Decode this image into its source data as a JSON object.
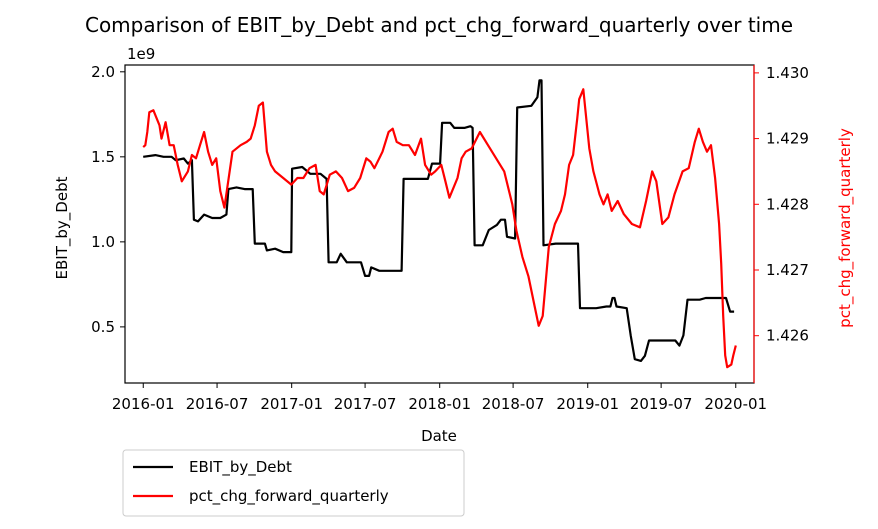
{
  "chart_data": {
    "type": "line",
    "title": "Comparison of EBIT_by_Debt and pct_chg_forward_quarterly over time",
    "xlabel": "Date",
    "x_ticks": [
      "2016-01",
      "2016-07",
      "2017-01",
      "2017-07",
      "2018-01",
      "2018-07",
      "2019-01",
      "2019-07",
      "2020-01"
    ],
    "x_range": [
      "2015-11-17",
      "2020-02-15"
    ],
    "left_axis": {
      "label": "EBIT_by_Debt",
      "offset_text": "1e9",
      "ticks": [
        "0.5",
        "1.0",
        "1.5",
        "2.0"
      ],
      "range": [
        0.17,
        2.04
      ],
      "unit_multiplier": 1000000000,
      "color": "#000000"
    },
    "right_axis": {
      "label": "pct_chg_forward_quarterly",
      "ticks": [
        "1.426",
        "1.427",
        "1.428",
        "1.429",
        "1.430"
      ],
      "range": [
        1.42528,
        1.43012
      ],
      "color": "#ff0000"
    },
    "legend": {
      "placement": "below-left"
    },
    "grid": false,
    "series": [
      {
        "name": "EBIT_by_Debt",
        "axis": "left",
        "color": "#000000",
        "points": [
          [
            "2016-01-01",
            1.5
          ],
          [
            "2016-01-31",
            1.51
          ],
          [
            "2016-02-20",
            1.5
          ],
          [
            "2016-03-11",
            1.5
          ],
          [
            "2016-03-21",
            1.48
          ],
          [
            "2016-04-10",
            1.49
          ],
          [
            "2016-04-20",
            1.46
          ],
          [
            "2016-04-30",
            1.48
          ],
          [
            "2016-05-05",
            1.13
          ],
          [
            "2016-05-15",
            1.12
          ],
          [
            "2016-05-30",
            1.16
          ],
          [
            "2016-06-19",
            1.14
          ],
          [
            "2016-07-09",
            1.14
          ],
          [
            "2016-07-24",
            1.16
          ],
          [
            "2016-07-29",
            1.31
          ],
          [
            "2016-08-18",
            1.32
          ],
          [
            "2016-09-07",
            1.31
          ],
          [
            "2016-09-27",
            1.31
          ],
          [
            "2016-10-02",
            0.99
          ],
          [
            "2016-10-27",
            0.99
          ],
          [
            "2016-11-01",
            0.95
          ],
          [
            "2016-11-21",
            0.96
          ],
          [
            "2016-12-11",
            0.94
          ],
          [
            "2016-12-31",
            0.94
          ],
          [
            "2017-01-02",
            1.43
          ],
          [
            "2017-01-27",
            1.44
          ],
          [
            "2017-02-16",
            1.4
          ],
          [
            "2017-03-13",
            1.4
          ],
          [
            "2017-03-28",
            1.37
          ],
          [
            "2017-04-02",
            0.88
          ],
          [
            "2017-04-22",
            0.88
          ],
          [
            "2017-05-02",
            0.93
          ],
          [
            "2017-05-17",
            0.88
          ],
          [
            "2017-06-21",
            0.88
          ],
          [
            "2017-07-01",
            0.8
          ],
          [
            "2017-07-11",
            0.8
          ],
          [
            "2017-07-16",
            0.85
          ],
          [
            "2017-08-05",
            0.83
          ],
          [
            "2017-08-25",
            0.83
          ],
          [
            "2017-09-14",
            0.83
          ],
          [
            "2017-09-29",
            0.83
          ],
          [
            "2017-10-04",
            1.37
          ],
          [
            "2017-10-29",
            1.37
          ],
          [
            "2017-12-03",
            1.37
          ],
          [
            "2017-12-13",
            1.46
          ],
          [
            "2018-01-02",
            1.46
          ],
          [
            "2018-01-07",
            1.7
          ],
          [
            "2018-01-27",
            1.7
          ],
          [
            "2018-02-06",
            1.67
          ],
          [
            "2018-03-03",
            1.67
          ],
          [
            "2018-03-18",
            1.68
          ],
          [
            "2018-03-23",
            1.67
          ],
          [
            "2018-03-28",
            0.98
          ],
          [
            "2018-04-17",
            0.98
          ],
          [
            "2018-05-02",
            1.07
          ],
          [
            "2018-05-22",
            1.1
          ],
          [
            "2018-06-01",
            1.13
          ],
          [
            "2018-06-11",
            1.13
          ],
          [
            "2018-06-16",
            1.03
          ],
          [
            "2018-07-06",
            1.02
          ],
          [
            "2018-07-11",
            1.79
          ],
          [
            "2018-08-15",
            1.8
          ],
          [
            "2018-08-30",
            1.85
          ],
          [
            "2018-09-04",
            1.95
          ],
          [
            "2018-09-09",
            1.95
          ],
          [
            "2018-09-14",
            0.98
          ],
          [
            "2018-10-14",
            0.99
          ],
          [
            "2018-11-23",
            0.99
          ],
          [
            "2018-12-08",
            0.99
          ],
          [
            "2018-12-13",
            0.61
          ],
          [
            "2019-01-22",
            0.61
          ],
          [
            "2019-02-16",
            0.62
          ],
          [
            "2019-02-26",
            0.62
          ],
          [
            "2019-03-03",
            0.67
          ],
          [
            "2019-03-08",
            0.67
          ],
          [
            "2019-03-13",
            0.62
          ],
          [
            "2019-04-07",
            0.61
          ],
          [
            "2019-04-17",
            0.45
          ],
          [
            "2019-04-27",
            0.31
          ],
          [
            "2019-05-12",
            0.3
          ],
          [
            "2019-05-22",
            0.33
          ],
          [
            "2019-06-01",
            0.42
          ],
          [
            "2019-06-21",
            0.42
          ],
          [
            "2019-07-21",
            0.42
          ],
          [
            "2019-07-31",
            0.42
          ],
          [
            "2019-08-05",
            0.42
          ],
          [
            "2019-08-15",
            0.39
          ],
          [
            "2019-08-25",
            0.45
          ],
          [
            "2019-09-04",
            0.66
          ],
          [
            "2019-10-04",
            0.66
          ],
          [
            "2019-10-19",
            0.67
          ],
          [
            "2019-11-18",
            0.67
          ],
          [
            "2019-12-08",
            0.67
          ],
          [
            "2019-12-18",
            0.59
          ],
          [
            "2019-12-28",
            0.59
          ]
        ]
      },
      {
        "name": "pct_chg_forward_quarterly",
        "axis": "right",
        "color": "#ff0000",
        "points": [
          [
            "2016-01-01",
            1.42887
          ],
          [
            "2016-01-06",
            1.4289
          ],
          [
            "2016-01-11",
            1.4291
          ],
          [
            "2016-01-16",
            1.4294
          ],
          [
            "2016-01-26",
            1.42943
          ],
          [
            "2016-02-10",
            1.4292
          ],
          [
            "2016-02-15",
            1.429
          ],
          [
            "2016-02-25",
            1.42925
          ],
          [
            "2016-03-06",
            1.4289
          ],
          [
            "2016-03-16",
            1.4289
          ],
          [
            "2016-03-26",
            1.4286
          ],
          [
            "2016-04-05",
            1.42835
          ],
          [
            "2016-04-20",
            1.4285
          ],
          [
            "2016-04-30",
            1.42875
          ],
          [
            "2016-05-10",
            1.4287
          ],
          [
            "2016-05-20",
            1.4289
          ],
          [
            "2016-05-30",
            1.4291
          ],
          [
            "2016-06-09",
            1.4288
          ],
          [
            "2016-06-19",
            1.4286
          ],
          [
            "2016-06-29",
            1.4287
          ],
          [
            "2016-07-09",
            1.4282
          ],
          [
            "2016-07-19",
            1.42795
          ],
          [
            "2016-08-08",
            1.4288
          ],
          [
            "2016-08-28",
            1.4289
          ],
          [
            "2016-09-12",
            1.42895
          ],
          [
            "2016-09-22",
            1.429
          ],
          [
            "2016-10-02",
            1.4292
          ],
          [
            "2016-10-12",
            1.4295
          ],
          [
            "2016-10-22",
            1.42955
          ],
          [
            "2016-11-01",
            1.4288
          ],
          [
            "2016-11-11",
            1.4286
          ],
          [
            "2016-11-21",
            1.4285
          ],
          [
            "2016-12-11",
            1.4284
          ],
          [
            "2016-12-31",
            1.4283
          ],
          [
            "2017-01-15",
            1.4284
          ],
          [
            "2017-01-30",
            1.4284
          ],
          [
            "2017-02-14",
            1.42855
          ],
          [
            "2017-03-01",
            1.4286
          ],
          [
            "2017-03-11",
            1.4282
          ],
          [
            "2017-03-21",
            1.42815
          ],
          [
            "2017-04-05",
            1.42845
          ],
          [
            "2017-04-20",
            1.4285
          ],
          [
            "2017-05-05",
            1.4284
          ],
          [
            "2017-05-20",
            1.4282
          ],
          [
            "2017-06-04",
            1.42825
          ],
          [
            "2017-06-19",
            1.4284
          ],
          [
            "2017-07-04",
            1.4287
          ],
          [
            "2017-07-14",
            1.42865
          ],
          [
            "2017-07-24",
            1.42855
          ],
          [
            "2017-08-13",
            1.4288
          ],
          [
            "2017-08-28",
            1.4291
          ],
          [
            "2017-09-07",
            1.42915
          ],
          [
            "2017-09-17",
            1.42895
          ],
          [
            "2017-10-02",
            1.4289
          ],
          [
            "2017-10-17",
            1.4289
          ],
          [
            "2017-11-01",
            1.42875
          ],
          [
            "2017-11-16",
            1.429
          ],
          [
            "2017-11-26",
            1.4286
          ],
          [
            "2017-12-11",
            1.42845
          ],
          [
            "2017-12-21",
            1.4285
          ],
          [
            "2018-01-05",
            1.4286
          ],
          [
            "2018-01-15",
            1.42835
          ],
          [
            "2018-01-25",
            1.4281
          ],
          [
            "2018-02-14",
            1.4284
          ],
          [
            "2018-02-24",
            1.4287
          ],
          [
            "2018-03-06",
            1.4288
          ],
          [
            "2018-03-21",
            1.42885
          ],
          [
            "2018-04-10",
            1.4291
          ],
          [
            "2018-04-30",
            1.4289
          ],
          [
            "2018-05-20",
            1.4287
          ],
          [
            "2018-06-09",
            1.4285
          ],
          [
            "2018-06-29",
            1.428
          ],
          [
            "2018-07-09",
            1.4276
          ],
          [
            "2018-07-24",
            1.4272
          ],
          [
            "2018-08-08",
            1.4269
          ],
          [
            "2018-08-23",
            1.42645
          ],
          [
            "2018-09-02",
            1.42615
          ],
          [
            "2018-09-12",
            1.4263
          ],
          [
            "2018-09-27",
            1.42735
          ],
          [
            "2018-10-12",
            1.4277
          ],
          [
            "2018-10-27",
            1.4279
          ],
          [
            "2018-11-06",
            1.42815
          ],
          [
            "2018-11-16",
            1.4286
          ],
          [
            "2018-11-26",
            1.42875
          ],
          [
            "2018-12-06",
            1.4293
          ],
          [
            "2018-12-11",
            1.4296
          ],
          [
            "2018-12-21",
            1.42975
          ],
          [
            "2019-01-05",
            1.42885
          ],
          [
            "2019-01-15",
            1.4285
          ],
          [
            "2019-01-30",
            1.42815
          ],
          [
            "2019-02-09",
            1.428
          ],
          [
            "2019-02-19",
            1.42815
          ],
          [
            "2019-03-01",
            1.4279
          ],
          [
            "2019-03-16",
            1.42805
          ],
          [
            "2019-03-31",
            1.42785
          ],
          [
            "2019-04-20",
            1.4277
          ],
          [
            "2019-05-10",
            1.42765
          ],
          [
            "2019-05-25",
            1.42805
          ],
          [
            "2019-06-09",
            1.4285
          ],
          [
            "2019-06-19",
            1.42835
          ],
          [
            "2019-07-04",
            1.4277
          ],
          [
            "2019-07-19",
            1.4278
          ],
          [
            "2019-08-03",
            1.42815
          ],
          [
            "2019-08-23",
            1.4285
          ],
          [
            "2019-09-07",
            1.42855
          ],
          [
            "2019-09-22",
            1.42895
          ],
          [
            "2019-10-02",
            1.42915
          ],
          [
            "2019-10-12",
            1.42895
          ],
          [
            "2019-10-22",
            1.4288
          ],
          [
            "2019-11-01",
            1.4289
          ],
          [
            "2019-11-11",
            1.4284
          ],
          [
            "2019-11-21",
            1.4277
          ],
          [
            "2019-11-26",
            1.4271
          ],
          [
            "2019-12-01",
            1.4263
          ],
          [
            "2019-12-06",
            1.4257
          ],
          [
            "2019-12-11",
            1.42552
          ],
          [
            "2019-12-21",
            1.42556
          ],
          [
            "2019-12-26",
            1.4257
          ],
          [
            "2020-01-01",
            1.42585
          ]
        ]
      }
    ]
  }
}
